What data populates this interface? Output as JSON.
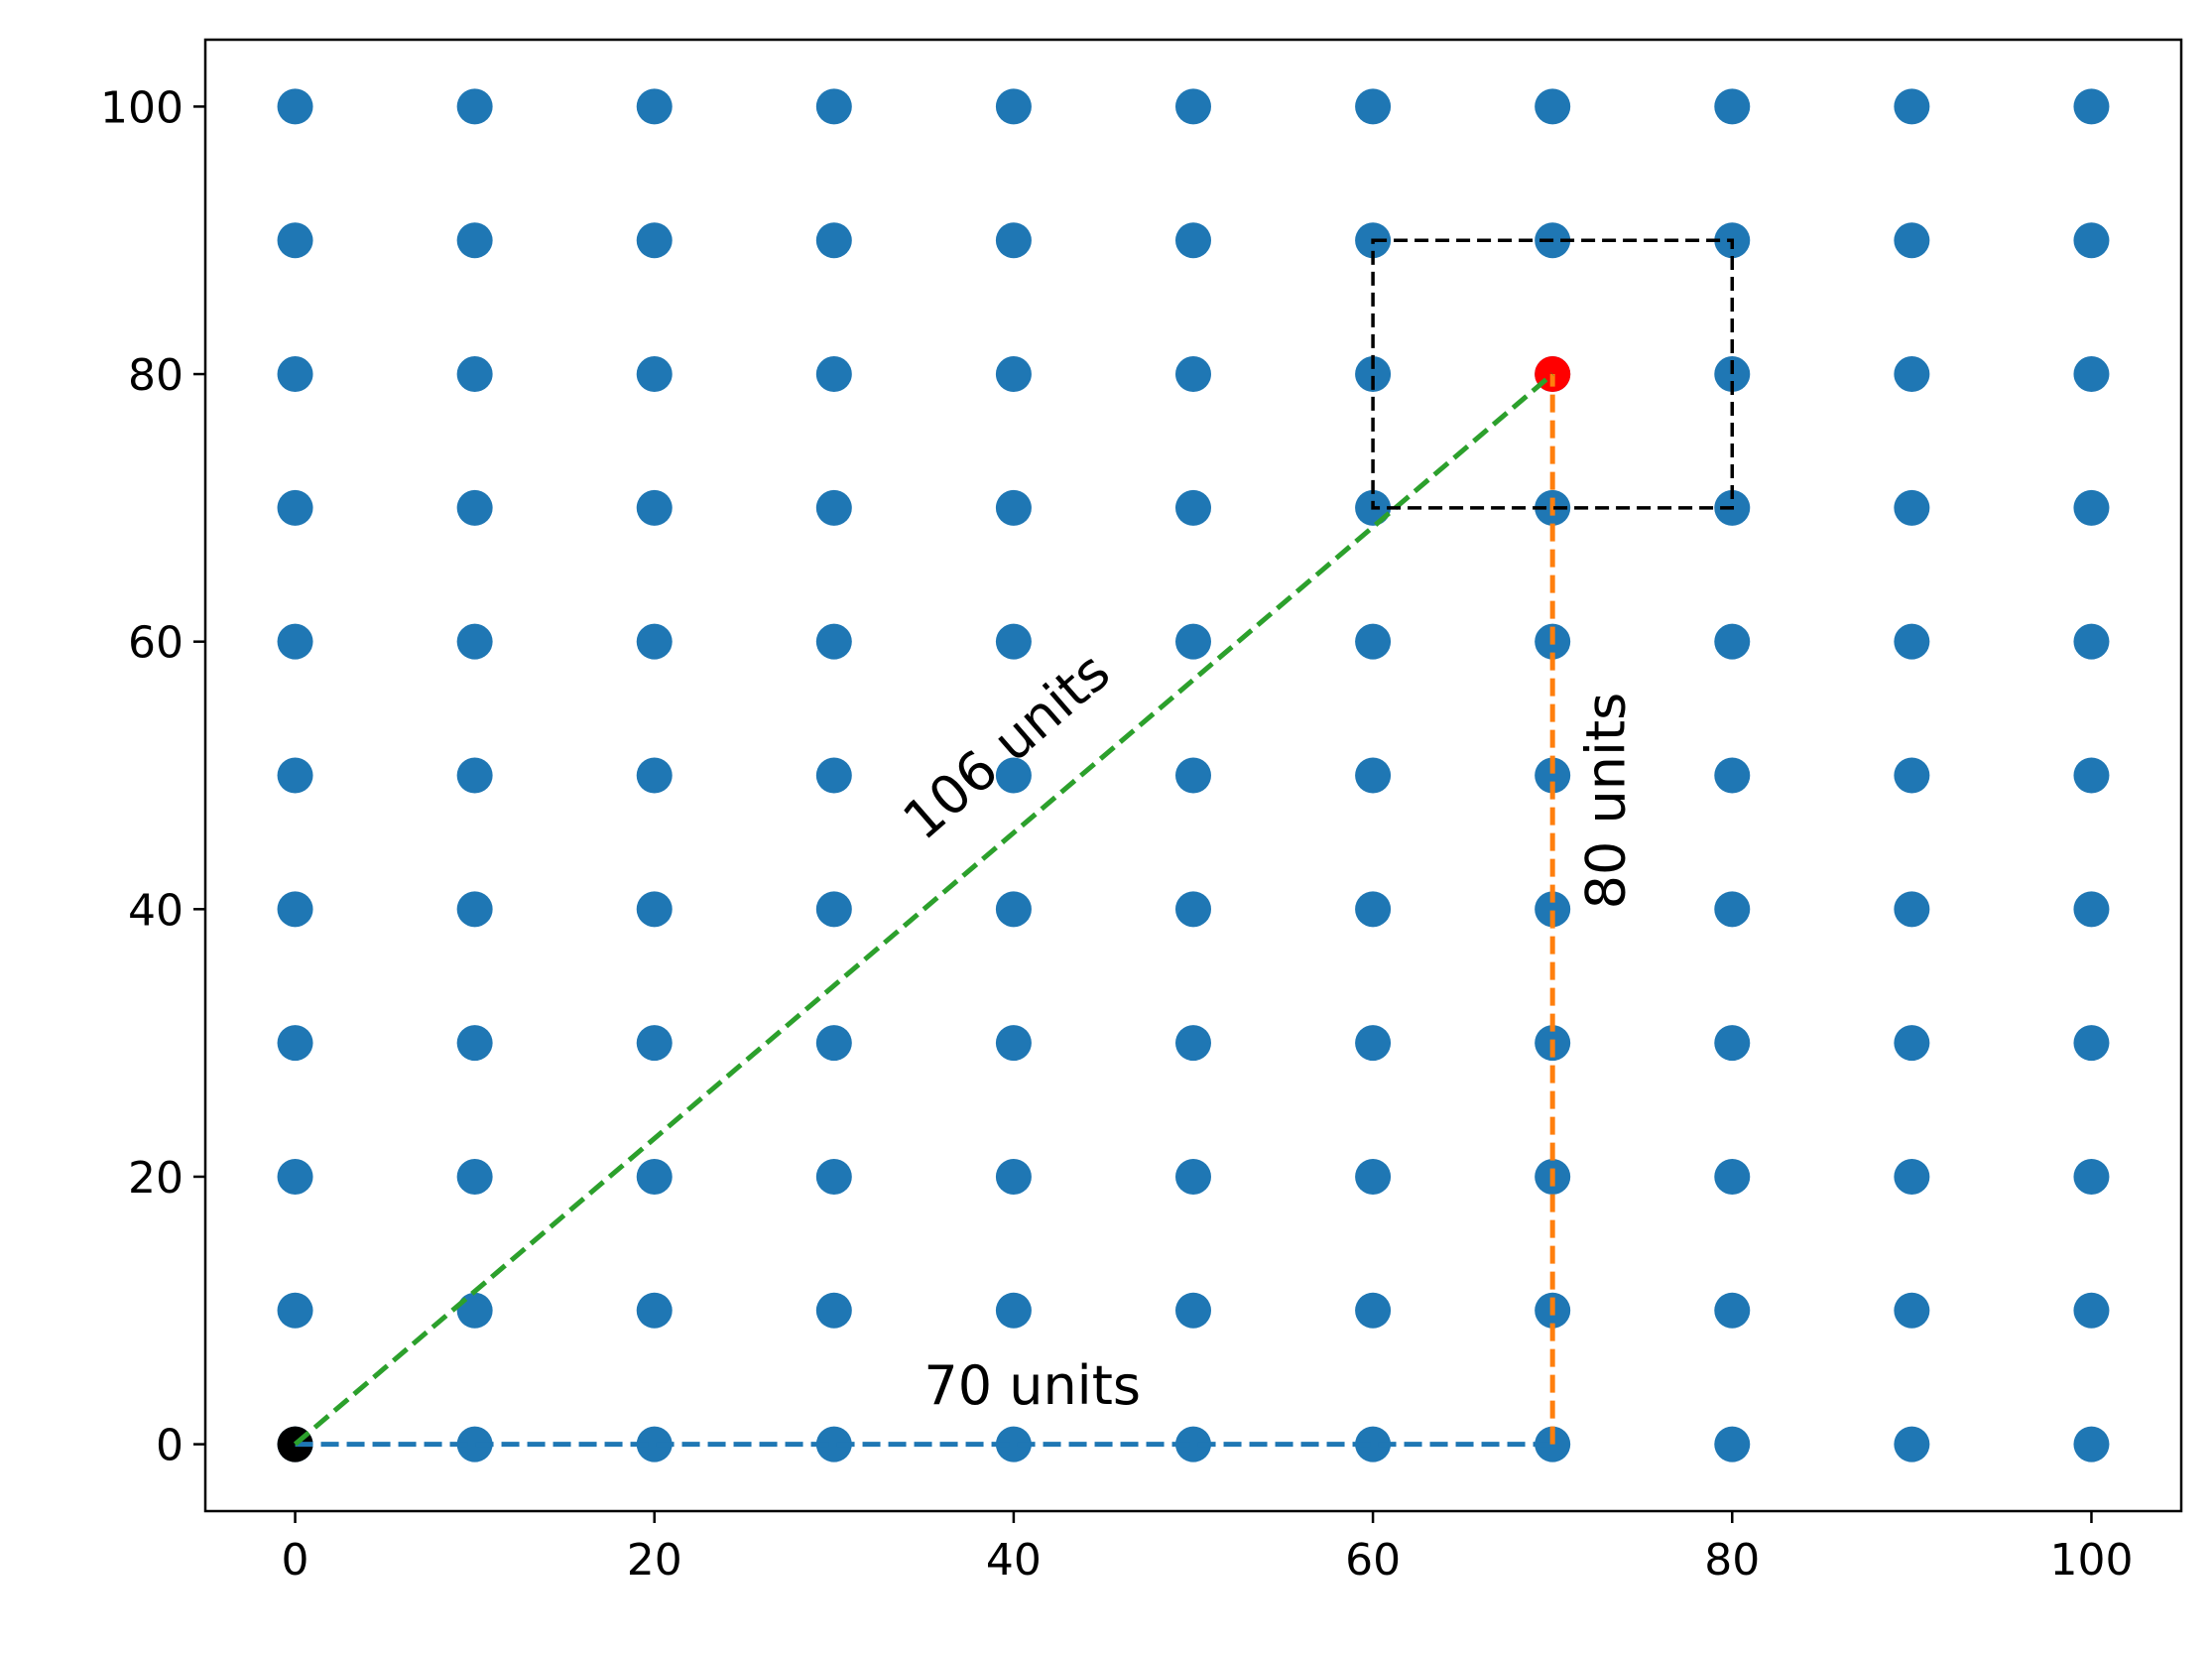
{
  "chart_data": {
    "type": "scatter",
    "title": "",
    "xlabel": "",
    "ylabel": "",
    "xlim": [
      -5,
      105
    ],
    "ylim": [
      -5,
      105
    ],
    "xticks": [
      0,
      20,
      40,
      60,
      80,
      100
    ],
    "yticks": [
      0,
      20,
      40,
      60,
      80,
      100
    ],
    "grid": false,
    "series": [
      {
        "marker_color": "#1f77b4",
        "x_values": [
          0,
          10,
          20,
          30,
          40,
          50,
          60,
          70,
          80,
          90,
          100
        ],
        "y_values": [
          0,
          10,
          20,
          30,
          40,
          50,
          60,
          70,
          80,
          90,
          100
        ],
        "layout": "full grid of every x_value paired with every y_value"
      }
    ],
    "special_points": [
      {
        "x": 0,
        "y": 0,
        "color": "#000000"
      },
      {
        "x": 70,
        "y": 80,
        "color": "#ff0000"
      }
    ],
    "lines": [
      {
        "from": [
          0,
          0
        ],
        "to": [
          70,
          0
        ],
        "color": "#1f77b4",
        "style": "dashed"
      },
      {
        "from": [
          70,
          0
        ],
        "to": [
          70,
          80
        ],
        "color": "#ff7f0e",
        "style": "dashed"
      },
      {
        "from": [
          0,
          0
        ],
        "to": [
          70,
          80
        ],
        "color": "#2ca02c",
        "style": "dashed"
      }
    ],
    "rectangle": {
      "x_range": [
        60,
        80
      ],
      "y_range": [
        70,
        90
      ],
      "color": "#000000",
      "style": "dashed"
    },
    "annotations": [
      {
        "text": "70 units",
        "x": 35,
        "y": 3
      },
      {
        "text": "80 units",
        "x": 74,
        "y": 40,
        "rotation": -90
      },
      {
        "text": "106 units",
        "x": 35,
        "y": 45,
        "rotation": -41
      }
    ]
  }
}
